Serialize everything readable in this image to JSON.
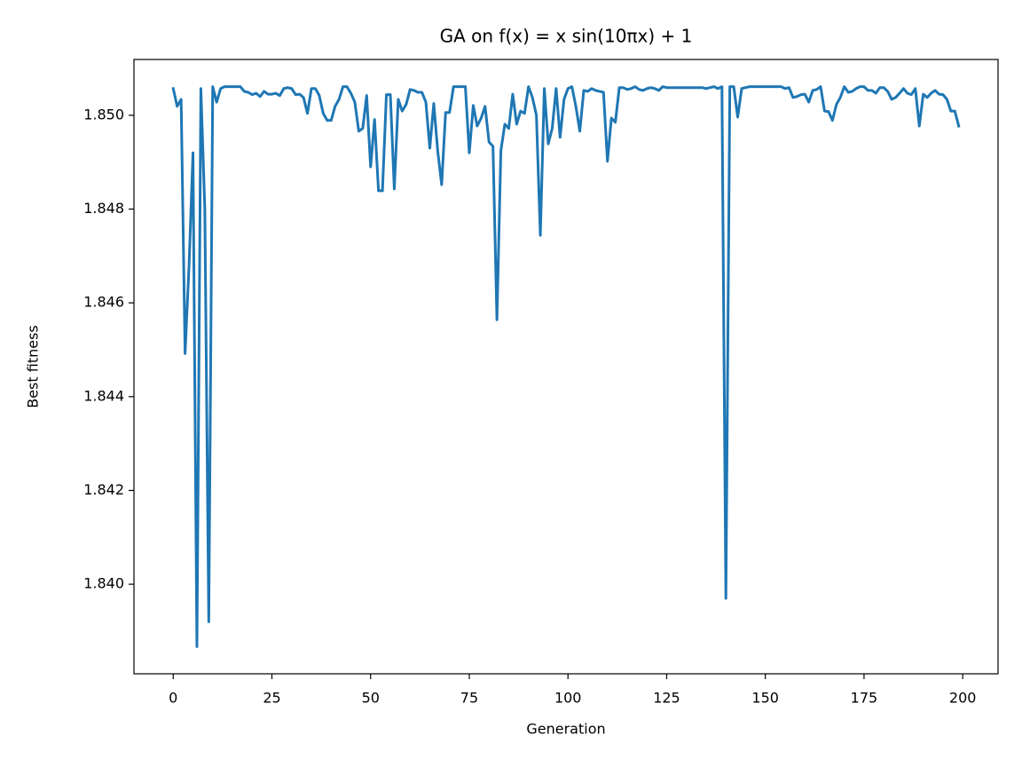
{
  "chart_data": {
    "type": "line",
    "title": "GA on f(x) = x sin(10πx) + 1",
    "x_label": "Generation",
    "y_label": "Best fitness",
    "x": [
      0,
      1,
      2,
      3,
      4,
      5,
      6,
      7,
      8,
      9,
      10,
      11,
      12,
      13,
      14,
      15,
      16,
      17,
      18,
      19,
      20,
      21,
      22,
      23,
      24,
      25,
      26,
      27,
      28,
      29,
      30,
      31,
      32,
      33,
      34,
      35,
      36,
      37,
      38,
      39,
      40,
      41,
      42,
      43,
      44,
      45,
      46,
      47,
      48,
      49,
      50,
      51,
      52,
      53,
      54,
      55,
      56,
      57,
      58,
      59,
      60,
      61,
      62,
      63,
      64,
      65,
      66,
      67,
      68,
      69,
      70,
      71,
      72,
      73,
      74,
      75,
      76,
      77,
      78,
      79,
      80,
      81,
      82,
      83,
      84,
      85,
      86,
      87,
      88,
      89,
      90,
      91,
      92,
      93,
      94,
      95,
      96,
      97,
      98,
      99,
      100,
      101,
      102,
      103,
      104,
      105,
      106,
      107,
      108,
      109,
      110,
      111,
      112,
      113,
      114,
      115,
      116,
      117,
      118,
      119,
      120,
      121,
      122,
      123,
      124,
      125,
      126,
      127,
      128,
      129,
      130,
      131,
      132,
      133,
      134,
      135,
      136,
      137,
      138,
      139,
      140,
      141,
      142,
      143,
      144,
      145,
      146,
      147,
      148,
      149,
      150,
      151,
      152,
      153,
      154,
      155,
      156,
      157,
      158,
      159,
      160,
      161,
      162,
      163,
      164,
      165,
      166,
      167,
      168,
      169,
      170,
      171,
      172,
      173,
      174,
      175,
      176,
      177,
      178,
      179,
      180,
      181,
      182,
      183,
      184,
      185,
      186,
      187,
      188,
      189,
      190,
      191,
      192,
      193,
      194,
      195,
      196,
      197,
      198,
      199
    ],
    "series": [
      {
        "color": "#1f77b4",
        "values": [
          1.85057,
          1.85019,
          1.85034,
          1.84492,
          1.84678,
          1.8492,
          1.83867,
          1.85057,
          1.848,
          1.8392,
          1.85061,
          1.85028,
          1.85057,
          1.85061,
          1.85061,
          1.85061,
          1.85061,
          1.85061,
          1.85051,
          1.85049,
          1.85044,
          1.85047,
          1.8504,
          1.85051,
          1.85045,
          1.85045,
          1.85047,
          1.85042,
          1.85057,
          1.85059,
          1.85057,
          1.85044,
          1.85045,
          1.85038,
          1.85004,
          1.85057,
          1.85057,
          1.85042,
          1.85004,
          1.84989,
          1.84989,
          1.85019,
          1.85034,
          1.85061,
          1.85061,
          1.85047,
          1.85028,
          1.84966,
          1.84972,
          1.85042,
          1.8489,
          1.84991,
          1.84839,
          1.84839,
          1.85044,
          1.85044,
          1.84843,
          1.85034,
          1.85009,
          1.85023,
          1.85055,
          1.85053,
          1.85049,
          1.85049,
          1.85028,
          1.8493,
          1.85025,
          1.84924,
          1.84852,
          1.85006,
          1.85006,
          1.85061,
          1.85061,
          1.85061,
          1.85061,
          1.8492,
          1.85021,
          1.84977,
          1.84994,
          1.85019,
          1.84943,
          1.84934,
          1.84564,
          1.84924,
          1.84981,
          1.84972,
          1.85045,
          1.84981,
          1.85009,
          1.85004,
          1.85061,
          1.85038,
          1.85,
          1.84744,
          1.85057,
          1.84939,
          1.84972,
          1.85057,
          1.84953,
          1.85034,
          1.85057,
          1.85061,
          1.85019,
          1.84966,
          1.85053,
          1.85051,
          1.85057,
          1.85053,
          1.85051,
          1.85049,
          1.84902,
          1.84994,
          1.84985,
          1.85059,
          1.85059,
          1.85055,
          1.85057,
          1.85061,
          1.85055,
          1.85053,
          1.85057,
          1.85059,
          1.85057,
          1.85053,
          1.85061,
          1.85059,
          1.85059,
          1.85059,
          1.85059,
          1.85059,
          1.85059,
          1.85059,
          1.85059,
          1.85059,
          1.85059,
          1.85057,
          1.85059,
          1.85061,
          1.85057,
          1.85061,
          1.8397,
          1.85061,
          1.85061,
          1.84996,
          1.85057,
          1.85059,
          1.85061,
          1.85061,
          1.85061,
          1.85061,
          1.85061,
          1.85061,
          1.85061,
          1.85061,
          1.85061,
          1.85057,
          1.85059,
          1.85038,
          1.8504,
          1.85044,
          1.85045,
          1.85028,
          1.85053,
          1.85055,
          1.85061,
          1.85009,
          1.85008,
          1.84989,
          1.85023,
          1.85038,
          1.85061,
          1.85049,
          1.85051,
          1.85057,
          1.85061,
          1.85061,
          1.85053,
          1.85053,
          1.85047,
          1.85059,
          1.85059,
          1.85051,
          1.85034,
          1.85038,
          1.85047,
          1.85057,
          1.85047,
          1.85044,
          1.85057,
          1.84977,
          1.85045,
          1.85038,
          1.85047,
          1.85053,
          1.85045,
          1.85044,
          1.85034,
          1.85009,
          1.85009,
          1.84977
        ]
      }
    ],
    "xlim": [
      -9.95,
      208.95
    ],
    "ylim": [
      1.83809,
      1.85119
    ],
    "xticks": [
      0,
      25,
      50,
      75,
      100,
      125,
      150,
      175,
      200
    ],
    "yticks": [
      {
        "value": 1.84,
        "label": "1.840"
      },
      {
        "value": 1.842,
        "label": "1.842"
      },
      {
        "value": 1.844,
        "label": "1.844"
      },
      {
        "value": 1.846,
        "label": "1.846"
      },
      {
        "value": 1.848,
        "label": "1.848"
      },
      {
        "value": 1.85,
        "label": "1.850"
      }
    ],
    "grid": false
  }
}
